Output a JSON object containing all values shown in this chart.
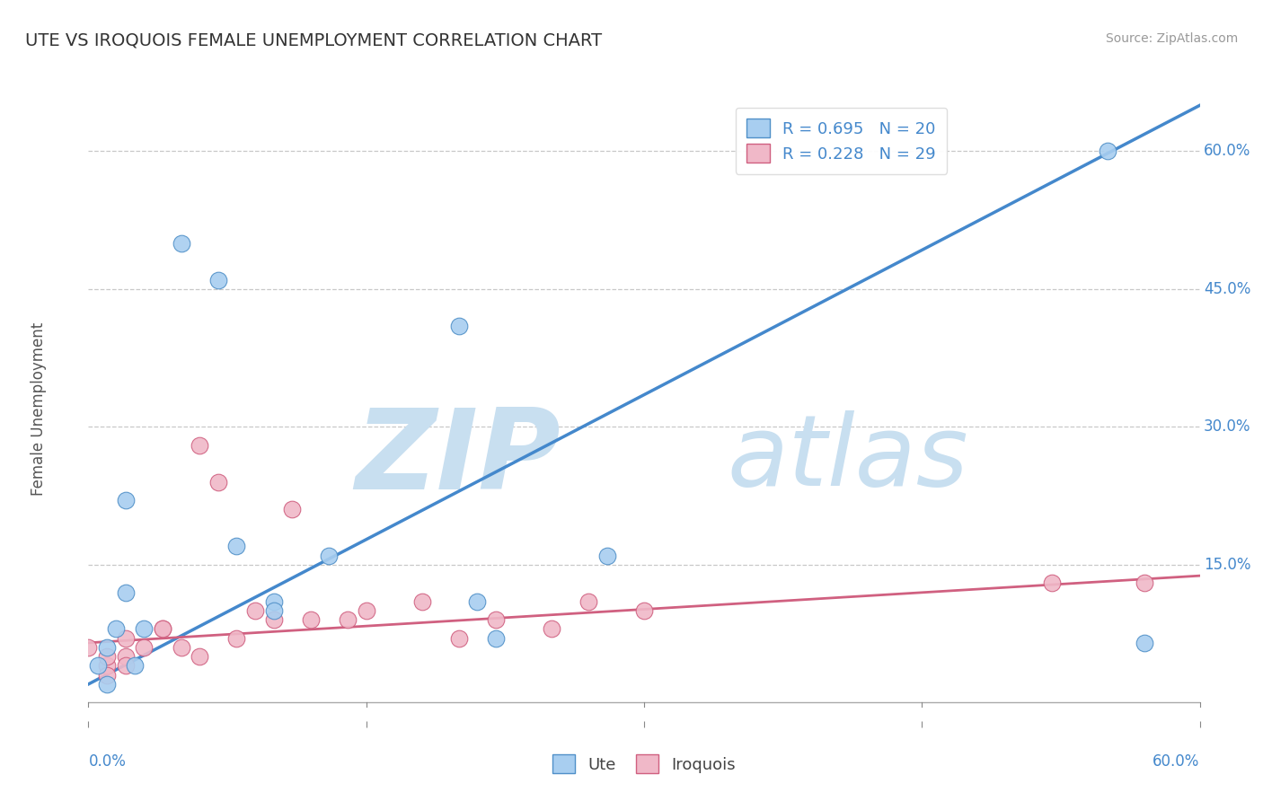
{
  "title": "UTE VS IROQUOIS FEMALE UNEMPLOYMENT CORRELATION CHART",
  "source": "Source: ZipAtlas.com",
  "ylabel": "Female Unemployment",
  "xlim": [
    0.0,
    0.6
  ],
  "ylim": [
    -0.02,
    0.66
  ],
  "plot_ylim": [
    0.0,
    0.66
  ],
  "yticks": [
    0.0,
    0.15,
    0.3,
    0.45,
    0.6
  ],
  "ytick_labels_right": [
    "",
    "15.0%",
    "30.0%",
    "45.0%",
    "60.0%"
  ],
  "xticks_left_label": "0.0%",
  "xticks_right_label": "60.0%",
  "background_color": "#ffffff",
  "grid_color": "#c8c8c8",
  "ute_color": "#a8cef0",
  "ute_edge_color": "#5090c8",
  "iroquois_color": "#f0b8c8",
  "iroquois_edge_color": "#d06080",
  "ute_line_color": "#4488cc",
  "iroquois_line_color": "#d06080",
  "right_label_color": "#4488cc",
  "ute_R": 0.695,
  "ute_N": 20,
  "iroquois_R": 0.228,
  "iroquois_N": 29,
  "watermark_zip": "ZIP",
  "watermark_atlas": "atlas",
  "watermark_color": "#c8dff0",
  "ute_points_x": [
    0.02,
    0.05,
    0.07,
    0.01,
    0.005,
    0.01,
    0.015,
    0.02,
    0.025,
    0.03,
    0.08,
    0.1,
    0.1,
    0.13,
    0.2,
    0.21,
    0.22,
    0.28,
    0.55,
    0.57
  ],
  "ute_points_y": [
    0.22,
    0.5,
    0.46,
    0.02,
    0.04,
    0.06,
    0.08,
    0.12,
    0.04,
    0.08,
    0.17,
    0.11,
    0.1,
    0.16,
    0.41,
    0.11,
    0.07,
    0.16,
    0.6,
    0.065
  ],
  "iroquois_points_x": [
    0.0,
    0.01,
    0.01,
    0.01,
    0.02,
    0.02,
    0.02,
    0.03,
    0.04,
    0.04,
    0.05,
    0.06,
    0.06,
    0.07,
    0.08,
    0.09,
    0.1,
    0.11,
    0.12,
    0.14,
    0.15,
    0.18,
    0.2,
    0.22,
    0.25,
    0.27,
    0.3,
    0.52,
    0.57
  ],
  "iroquois_points_y": [
    0.06,
    0.04,
    0.05,
    0.03,
    0.07,
    0.05,
    0.04,
    0.06,
    0.08,
    0.08,
    0.06,
    0.05,
    0.28,
    0.24,
    0.07,
    0.1,
    0.09,
    0.21,
    0.09,
    0.09,
    0.1,
    0.11,
    0.07,
    0.09,
    0.08,
    0.11,
    0.1,
    0.13,
    0.13
  ],
  "ute_line_x": [
    0.0,
    0.6
  ],
  "ute_line_y": [
    0.02,
    0.65
  ],
  "iroquois_line_x": [
    0.0,
    0.6
  ],
  "iroquois_line_y": [
    0.065,
    0.138
  ],
  "marker_size": 180,
  "title_fontsize": 14,
  "tick_label_fontsize": 12
}
